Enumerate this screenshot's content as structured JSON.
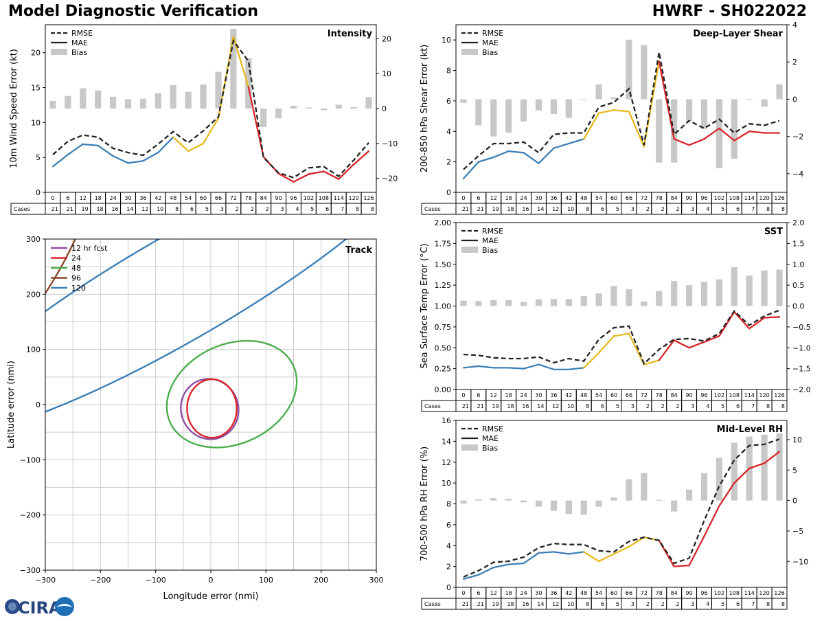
{
  "header": {
    "title_left": "Model Diagnostic Verification",
    "title_right": "HWRF - SH022022"
  },
  "logo": {
    "text": "CIRA"
  },
  "table": {
    "hours": [
      "0",
      "6",
      "12",
      "18",
      "24",
      "30",
      "36",
      "42",
      "48",
      "54",
      "60",
      "66",
      "72",
      "78",
      "84",
      "90",
      "96",
      "102",
      "108",
      "114",
      "120",
      "126"
    ],
    "cases_label": "Cases",
    "cases": [
      "21",
      "21",
      "19",
      "18",
      "16",
      "14",
      "12",
      "10",
      "8",
      "6",
      "5",
      "3",
      "2",
      "2",
      "2",
      "3",
      "4",
      "5",
      "6",
      "7",
      "8",
      "8"
    ]
  },
  "colors": {
    "early": "#3b7fb6",
    "mid": "#e6b81e",
    "late": "#d92428",
    "dashed": "#222222",
    "bias": "#c8c8c8"
  },
  "legend": {
    "rmse": "RMSE",
    "mae": "MAE",
    "bias": "Bias"
  },
  "chart_data": [
    {
      "id": "intensity",
      "type": "line",
      "title": "Intensity",
      "ylabel": "10m Wind Speed Error (kt)",
      "ylim": [
        0,
        24
      ],
      "yticks": [
        "0",
        "5",
        "10",
        "15",
        "20"
      ],
      "y2lim": [
        -24,
        24
      ],
      "y2ticks": [
        "20",
        "10",
        "0",
        "−10",
        "−20"
      ],
      "x": [
        0,
        6,
        12,
        18,
        24,
        30,
        36,
        42,
        48,
        54,
        60,
        66,
        72,
        78,
        84,
        90,
        96,
        102,
        108,
        114,
        120,
        126
      ],
      "rmse": [
        5.4,
        7.3,
        8.2,
        7.9,
        6.3,
        5.7,
        5.3,
        6.9,
        8.7,
        7.1,
        8.8,
        10.8,
        21.7,
        18.8,
        5.0,
        2.8,
        2.1,
        3.5,
        3.7,
        2.3,
        4.6,
        7.1
      ],
      "mae": [
        3.7,
        5.4,
        6.9,
        6.7,
        5.2,
        4.2,
        4.5,
        5.7,
        7.9,
        5.9,
        7.0,
        10.6,
        22.3,
        15.1,
        5.1,
        2.7,
        1.5,
        2.6,
        3.0,
        1.9,
        4.0,
        5.9
      ],
      "bias": [
        2.2,
        3.6,
        5.8,
        5.2,
        3.4,
        2.7,
        2.8,
        4.4,
        6.7,
        4.8,
        6.9,
        10.5,
        22.8,
        14.4,
        -5.3,
        -2.8,
        0.8,
        0.3,
        -0.5,
        1.1,
        0.4,
        3.3
      ]
    },
    {
      "id": "shear",
      "type": "line",
      "title": "Deep-Layer Shear",
      "ylabel": "200-850 hPa Shear Error (kt)",
      "ylim": [
        0,
        11
      ],
      "yticks": [
        "0",
        "2",
        "4",
        "6",
        "8",
        "10"
      ],
      "y2lim": [
        -5.0,
        4.0
      ],
      "y2ticks": [
        "4",
        "2",
        "0",
        "−2",
        "−4"
      ],
      "x": [
        0,
        6,
        12,
        18,
        24,
        30,
        36,
        42,
        48,
        54,
        60,
        66,
        72,
        78,
        84,
        90,
        96,
        102,
        108,
        114,
        120,
        126
      ],
      "rmse": [
        1.5,
        2.4,
        3.2,
        3.2,
        3.3,
        2.6,
        3.8,
        3.9,
        3.9,
        5.6,
        5.9,
        6.8,
        3.1,
        9.2,
        3.8,
        4.7,
        4.2,
        4.8,
        3.9,
        4.5,
        4.4,
        4.7
      ],
      "mae": [
        0.9,
        2.0,
        2.3,
        2.7,
        2.6,
        1.9,
        2.9,
        3.2,
        3.5,
        5.2,
        5.4,
        5.3,
        3.0,
        8.6,
        3.5,
        3.1,
        3.5,
        4.2,
        3.4,
        4.0,
        3.9,
        3.9
      ],
      "bias": [
        -0.2,
        -1.4,
        -2.0,
        -1.8,
        -1.2,
        -0.6,
        -0.8,
        -1.0,
        0.0,
        0.8,
        0.1,
        3.2,
        2.9,
        -3.4,
        -3.4,
        -1.2,
        -1.6,
        -3.7,
        -3.2,
        0.0,
        -0.4,
        0.8
      ]
    },
    {
      "id": "sst",
      "type": "line",
      "title": "SST",
      "ylabel": "Sea Surface Temp Error (°C)",
      "ylim": [
        0,
        2
      ],
      "yticks": [
        "0.00",
        "0.25",
        "0.50",
        "0.75",
        "1.00",
        "1.25",
        "1.50",
        "1.75",
        "2.00"
      ],
      "y2lim": [
        -2,
        2
      ],
      "y2ticks": [
        "2.0",
        "1.5",
        "1.0",
        "0.5",
        "0.0",
        "−0.5",
        "−1.0",
        "−1.5",
        "−2.0"
      ],
      "x": [
        0,
        6,
        12,
        18,
        24,
        30,
        36,
        42,
        48,
        54,
        60,
        66,
        72,
        78,
        84,
        90,
        96,
        102,
        108,
        114,
        120,
        126
      ],
      "rmse": [
        0.42,
        0.41,
        0.38,
        0.37,
        0.37,
        0.39,
        0.32,
        0.37,
        0.34,
        0.6,
        0.74,
        0.76,
        0.31,
        0.48,
        0.6,
        0.61,
        0.58,
        0.67,
        0.94,
        0.77,
        0.88,
        0.95
      ],
      "mae": [
        0.26,
        0.28,
        0.26,
        0.26,
        0.25,
        0.3,
        0.24,
        0.24,
        0.26,
        0.44,
        0.64,
        0.67,
        0.3,
        0.35,
        0.59,
        0.5,
        0.57,
        0.64,
        0.93,
        0.73,
        0.86,
        0.87
      ],
      "bias": [
        0.13,
        0.12,
        0.14,
        0.14,
        0.1,
        0.16,
        0.17,
        0.17,
        0.24,
        0.3,
        0.48,
        0.4,
        0.11,
        0.36,
        0.6,
        0.5,
        0.58,
        0.64,
        0.93,
        0.73,
        0.85,
        0.87
      ]
    },
    {
      "id": "rh",
      "type": "line",
      "title": "Mid-Level RH",
      "ylabel": "700-500 hPa RH Error (%)",
      "ylim": [
        0,
        16
      ],
      "yticks": [
        "0",
        "2",
        "4",
        "6",
        "8",
        "10",
        "12",
        "14",
        "16"
      ],
      "y2lim": [
        -14.25,
        13.15
      ],
      "y2ticks": [
        "10",
        "5",
        "0",
        "−5",
        "−10"
      ],
      "x": [
        0,
        6,
        12,
        18,
        24,
        30,
        36,
        42,
        48,
        54,
        60,
        66,
        72,
        78,
        84,
        90,
        96,
        102,
        108,
        114,
        120,
        126
      ],
      "rmse": [
        1.0,
        1.6,
        2.4,
        2.5,
        2.9,
        3.8,
        4.2,
        4.1,
        4.1,
        3.5,
        3.4,
        4.4,
        4.8,
        4.5,
        2.3,
        2.8,
        6.4,
        9.7,
        12.2,
        13.6,
        13.7,
        14.2
      ],
      "mae": [
        0.8,
        1.2,
        1.9,
        2.2,
        2.3,
        3.3,
        3.4,
        3.2,
        3.4,
        2.5,
        3.2,
        3.9,
        4.8,
        4.5,
        2.0,
        2.1,
        4.9,
        7.8,
        10.0,
        11.4,
        11.9,
        13.0
      ],
      "bias": [
        -0.5,
        0.2,
        0.4,
        0.3,
        -0.3,
        -1.0,
        -1.7,
        -2.2,
        -2.3,
        -1.0,
        0.5,
        3.5,
        4.5,
        0.1,
        -1.8,
        1.8,
        4.5,
        7.0,
        9.5,
        10.5,
        10.8,
        11.0
      ]
    },
    {
      "id": "track",
      "type": "ellipse",
      "title": "Track",
      "xlabel": "Longitude error (nmi)",
      "ylabel": "Latitude error (nmi)",
      "xlim": [
        -300,
        300
      ],
      "ylim": [
        -300,
        300
      ],
      "xticks": [
        "−300",
        "−200",
        "−100",
        "0",
        "100",
        "200",
        "300"
      ],
      "yticks": [
        "300",
        "200",
        "100",
        "0",
        "−100",
        "−200",
        "−300"
      ],
      "ellipses": [
        {
          "label": "12 hr fcst",
          "color": "#8e4ca5",
          "cx": -2,
          "cy": -8,
          "rx": 52,
          "ry": 55,
          "angle": 20
        },
        {
          "label": "24",
          "color": "#d92428",
          "cx": 2,
          "cy": -7,
          "rx": 45,
          "ry": 53,
          "angle": 0
        },
        {
          "label": "48",
          "color": "#4cae4c",
          "cx": 38,
          "cy": 19,
          "rx": 123,
          "ry": 90,
          "angle": 25
        },
        {
          "label": "96",
          "color": "#8b4a2a",
          "cx": -320,
          "cy": 330,
          "rx": 80,
          "ry": 250,
          "angle": -25
        },
        {
          "label": "120",
          "color": "#3b7fb6",
          "cx": -60,
          "cy": 210,
          "rx": 500,
          "ry": 95,
          "angle": 30
        }
      ]
    }
  ]
}
